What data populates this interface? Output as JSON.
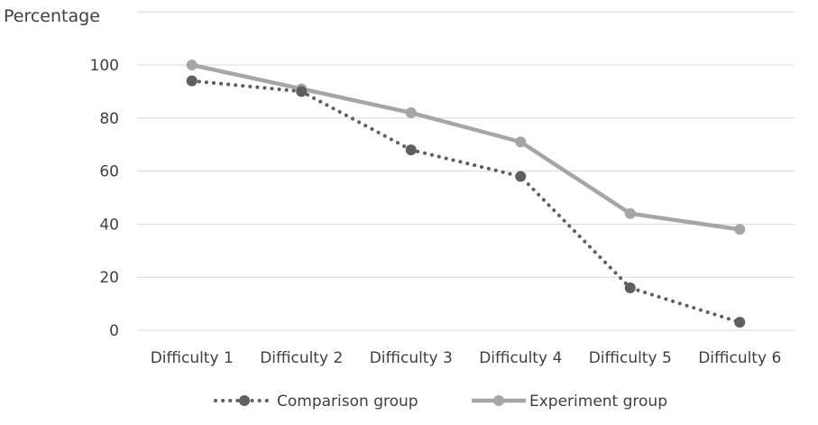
{
  "chart_data": {
    "type": "line",
    "ylabel": "Percentage",
    "xlabel": "",
    "categories": [
      "Difficulty 1",
      "Difficulty 2",
      "Difficulty 3",
      "Difficulty 4",
      "Difficulty 5",
      "Difficulty 6"
    ],
    "ylim": [
      0,
      100
    ],
    "yticks": [
      0,
      20,
      40,
      60,
      80,
      100
    ],
    "grid": true,
    "legend_position": "bottom",
    "series": [
      {
        "name": "Comparison group",
        "style": "dotted",
        "color": "#5f5f5f",
        "values": [
          94,
          90,
          68,
          58,
          16,
          3
        ]
      },
      {
        "name": "Experiment group",
        "style": "solid",
        "color": "#a6a6a6",
        "values": [
          100,
          91,
          82,
          71,
          44,
          38
        ]
      }
    ]
  }
}
